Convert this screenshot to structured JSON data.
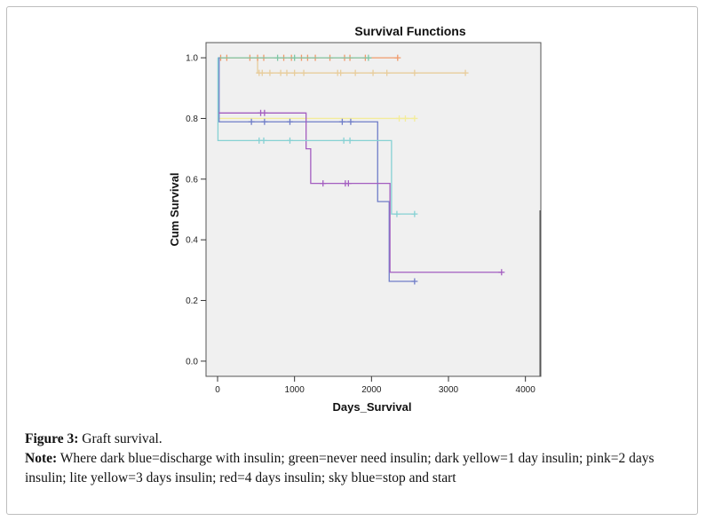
{
  "chart_data": {
    "type": "line",
    "subtype": "kaplan-meier step",
    "title": "Survival Functions",
    "xlabel": "Days_Survival",
    "ylabel": "Cum Survival",
    "xlim": [
      -150,
      4200
    ],
    "ylim": [
      -0.05,
      1.05
    ],
    "xticks": [
      0,
      1000,
      2000,
      3000,
      4000
    ],
    "xtick_labels": [
      "0",
      "1000",
      "2000",
      "3000",
      "4000"
    ],
    "yticks": [
      0.0,
      0.2,
      0.4,
      0.6,
      0.8,
      1.0
    ],
    "ytick_labels": [
      "0.0",
      "0.2",
      "0.4",
      "0.6",
      "0.8",
      "1.0"
    ],
    "grid": false,
    "legend": "right (cropped)",
    "series": [
      {
        "color": "#e8cd9c",
        "steps": [
          [
            0,
            1.0
          ],
          [
            520,
            0.95
          ],
          [
            3220,
            0.95
          ]
        ],
        "censored": [
          [
            540,
            0.95
          ],
          [
            580,
            0.95
          ],
          [
            680,
            0.95
          ],
          [
            820,
            0.95
          ],
          [
            900,
            0.95
          ],
          [
            1000,
            0.95
          ],
          [
            1120,
            0.95
          ],
          [
            1560,
            0.95
          ],
          [
            1600,
            0.95
          ],
          [
            1790,
            0.95
          ],
          [
            2020,
            0.95
          ],
          [
            2200,
            0.95
          ],
          [
            2560,
            0.95
          ],
          [
            3220,
            0.95
          ]
        ]
      },
      {
        "color": "#f09a6b",
        "steps": [
          [
            0,
            1.0
          ],
          [
            2340,
            1.0
          ]
        ],
        "censored": [
          [
            40,
            1.0
          ],
          [
            120,
            1.0
          ],
          [
            420,
            1.0
          ],
          [
            520,
            1.0
          ],
          [
            600,
            1.0
          ],
          [
            860,
            1.0
          ],
          [
            960,
            1.0
          ],
          [
            1090,
            1.0
          ],
          [
            1170,
            1.0
          ],
          [
            1270,
            1.0
          ],
          [
            1460,
            1.0
          ],
          [
            1650,
            1.0
          ],
          [
            1720,
            1.0
          ],
          [
            1920,
            1.0
          ],
          [
            2340,
            1.0
          ]
        ]
      },
      {
        "color": "#7fc7a6",
        "steps": [
          [
            0,
            1.0
          ],
          [
            2000,
            1.0
          ]
        ],
        "censored": [
          [
            780,
            1.0
          ],
          [
            1000,
            1.0
          ],
          [
            1960,
            1.0
          ]
        ]
      },
      {
        "color": "#f3ec9b",
        "steps": [
          [
            0,
            0.8
          ],
          [
            2560,
            0.8
          ]
        ],
        "censored": [
          [
            2360,
            0.8
          ],
          [
            2440,
            0.8
          ],
          [
            2560,
            0.8
          ]
        ]
      },
      {
        "color": "#6f7dc8",
        "steps": [
          [
            0,
            1.0
          ],
          [
            20,
            0.789
          ],
          [
            2080,
            0.789
          ],
          [
            2080,
            0.526
          ],
          [
            2230,
            0.526
          ],
          [
            2230,
            0.263
          ],
          [
            2560,
            0.263
          ]
        ],
        "censored": [
          [
            440,
            0.789
          ],
          [
            610,
            0.789
          ],
          [
            940,
            0.789
          ],
          [
            1620,
            0.789
          ],
          [
            1730,
            0.789
          ],
          [
            2560,
            0.263
          ]
        ]
      },
      {
        "color": "#a35dc0",
        "steps": [
          [
            0,
            0.818
          ],
          [
            1150,
            0.818
          ],
          [
            1150,
            0.7
          ],
          [
            1210,
            0.7
          ],
          [
            1210,
            0.586
          ],
          [
            2240,
            0.586
          ],
          [
            2240,
            0.293
          ],
          [
            3690,
            0.293
          ]
        ],
        "censored": [
          [
            560,
            0.818
          ],
          [
            610,
            0.818
          ],
          [
            1370,
            0.586
          ],
          [
            1660,
            0.586
          ],
          [
            1700,
            0.586
          ],
          [
            3690,
            0.293
          ]
        ]
      },
      {
        "color": "#86d1d3",
        "steps": [
          [
            0,
            1.0
          ],
          [
            5,
            0.727
          ],
          [
            2260,
            0.727
          ],
          [
            2260,
            0.485
          ],
          [
            2560,
            0.485
          ]
        ],
        "censored": [
          [
            540,
            0.727
          ],
          [
            600,
            0.727
          ],
          [
            940,
            0.727
          ],
          [
            1640,
            0.727
          ],
          [
            1720,
            0.727
          ],
          [
            2330,
            0.485
          ],
          [
            2560,
            0.485
          ]
        ]
      }
    ]
  },
  "caption": {
    "figure_label": "Figure 3:",
    "figure_text": " Graft survival.",
    "note_label": "Note:",
    "note_text": " Where dark blue=discharge with insulin; green=never need insulin; dark yellow=1 day insulin; pink=2 days insulin; lite yellow=3 days insulin; red=4 days insulin; sky blue=stop and start"
  }
}
